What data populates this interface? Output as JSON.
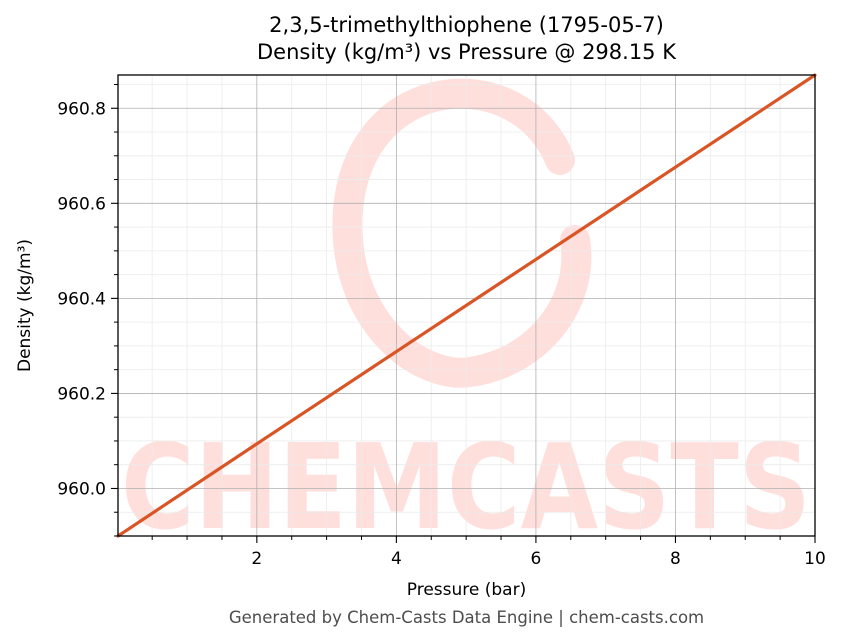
{
  "chart_data": {
    "type": "line",
    "title": "2,3,5-trimethylthiophene (1795-05-7)",
    "subtitle": "Density (kg/m³) vs Pressure @ 298.15 K",
    "xlabel": "Pressure (bar)",
    "ylabel": "Density (kg/m³)",
    "xlim": [
      0.01,
      10
    ],
    "ylim": [
      959.9,
      960.87
    ],
    "xticks": [
      2,
      4,
      6,
      8,
      10
    ],
    "xtick_labels": [
      "2",
      "4",
      "6",
      "8",
      "10"
    ],
    "yticks": [
      960.0,
      960.2,
      960.4,
      960.6,
      960.8
    ],
    "ytick_labels": [
      "960.0",
      "960.2",
      "960.4",
      "960.6",
      "960.8"
    ],
    "grid": true,
    "minor_grid": true,
    "series": [
      {
        "color": "#d95525",
        "x": [
          0.01,
          2,
          4,
          6,
          8,
          10
        ],
        "y": [
          959.9,
          960.094,
          960.288,
          960.482,
          960.676,
          960.87
        ]
      }
    ]
  },
  "watermark": {
    "text": "CHEMCASTS",
    "color": "#ffdcd8"
  },
  "footer": "Generated by Chem-Casts Data Engine | chem-casts.com"
}
